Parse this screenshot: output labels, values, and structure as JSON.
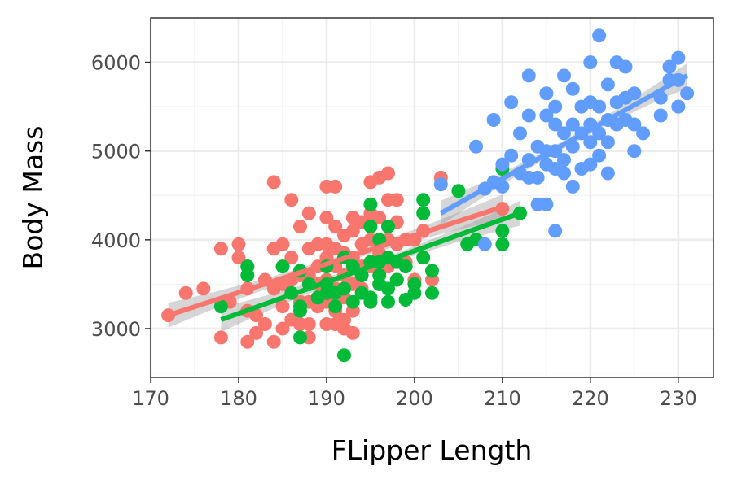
{
  "chart_data": {
    "type": "scatter",
    "xlabel": "FLipper Length",
    "ylabel": "Body Mass",
    "xlim": [
      170,
      234
    ],
    "ylim": [
      2450,
      6500
    ],
    "x_ticks": [
      170,
      180,
      190,
      200,
      210,
      220,
      230
    ],
    "y_ticks": [
      3000,
      4000,
      5000,
      6000
    ],
    "grid": true,
    "legend": "none",
    "series": [
      {
        "color": "#F8766D",
        "points": [
          [
            172,
            3150
          ],
          [
            174,
            3400
          ],
          [
            176,
            3450
          ],
          [
            178,
            2900
          ],
          [
            178,
            3900
          ],
          [
            179,
            3300
          ],
          [
            180,
            3950
          ],
          [
            180,
            3800
          ],
          [
            181,
            3700
          ],
          [
            181,
            3450
          ],
          [
            181,
            3200
          ],
          [
            181,
            2850
          ],
          [
            182,
            3150
          ],
          [
            182,
            2950
          ],
          [
            183,
            3550
          ],
          [
            183,
            3050
          ],
          [
            184,
            4650
          ],
          [
            184,
            3900
          ],
          [
            184,
            3450
          ],
          [
            184,
            2850
          ],
          [
            185,
            3950
          ],
          [
            185,
            3500
          ],
          [
            185,
            3250
          ],
          [
            185,
            3000
          ],
          [
            186,
            4450
          ],
          [
            186,
            3800
          ],
          [
            186,
            3550
          ],
          [
            186,
            3100
          ],
          [
            187,
            4150
          ],
          [
            187,
            3600
          ],
          [
            187,
            3300
          ],
          [
            187,
            3050
          ],
          [
            188,
            4300
          ],
          [
            188,
            3900
          ],
          [
            188,
            3600
          ],
          [
            188,
            3300
          ],
          [
            188,
            3050
          ],
          [
            188,
            2900
          ],
          [
            189,
            3950
          ],
          [
            189,
            3700
          ],
          [
            189,
            3500
          ],
          [
            189,
            3250
          ],
          [
            190,
            4600
          ],
          [
            190,
            4250
          ],
          [
            190,
            3950
          ],
          [
            190,
            3800
          ],
          [
            190,
            3550
          ],
          [
            190,
            3300
          ],
          [
            190,
            3050
          ],
          [
            191,
            4600
          ],
          [
            191,
            4150
          ],
          [
            191,
            3900
          ],
          [
            191,
            3700
          ],
          [
            191,
            3450
          ],
          [
            191,
            3200
          ],
          [
            191,
            3050
          ],
          [
            192,
            4050
          ],
          [
            192,
            3850
          ],
          [
            192,
            3600
          ],
          [
            192,
            3350
          ],
          [
            192,
            3100
          ],
          [
            192,
            3000
          ],
          [
            193,
            4250
          ],
          [
            193,
            4100
          ],
          [
            193,
            3800
          ],
          [
            193,
            3500
          ],
          [
            193,
            3200
          ],
          [
            193,
            2950
          ],
          [
            194,
            4200
          ],
          [
            194,
            3950
          ],
          [
            194,
            3700
          ],
          [
            194,
            3450
          ],
          [
            195,
            4650
          ],
          [
            195,
            4300
          ],
          [
            195,
            4000
          ],
          [
            195,
            3700
          ],
          [
            195,
            3300
          ],
          [
            196,
            4700
          ],
          [
            196,
            4250
          ],
          [
            196,
            3850
          ],
          [
            196,
            3500
          ],
          [
            197,
            4750
          ],
          [
            197,
            4450
          ],
          [
            197,
            4000
          ],
          [
            197,
            3700
          ],
          [
            198,
            4450
          ],
          [
            198,
            4200
          ],
          [
            198,
            3950
          ],
          [
            198,
            3550
          ],
          [
            199,
            4000
          ],
          [
            199,
            3750
          ],
          [
            200,
            4000
          ],
          [
            200,
            3550
          ],
          [
            201,
            4100
          ],
          [
            202,
            3550
          ],
          [
            203,
            4700
          ],
          [
            210,
            4350
          ]
        ],
        "trend": {
          "x": [
            172,
            210
          ],
          "y": [
            3150,
            4370
          ]
        }
      },
      {
        "color": "#00BA38",
        "points": [
          [
            178,
            3250
          ],
          [
            181,
            3700
          ],
          [
            181,
            3600
          ],
          [
            185,
            3700
          ],
          [
            186,
            3400
          ],
          [
            187,
            3650
          ],
          [
            187,
            3250
          ],
          [
            187,
            3200
          ],
          [
            187,
            2900
          ],
          [
            188,
            3500
          ],
          [
            189,
            3350
          ],
          [
            190,
            3700
          ],
          [
            190,
            3500
          ],
          [
            190,
            3400
          ],
          [
            191,
            3400
          ],
          [
            191,
            3250
          ],
          [
            192,
            3800
          ],
          [
            192,
            3450
          ],
          [
            192,
            2700
          ],
          [
            193,
            3700
          ],
          [
            193,
            3300
          ],
          [
            194,
            3600
          ],
          [
            194,
            3400
          ],
          [
            195,
            4400
          ],
          [
            195,
            4150
          ],
          [
            195,
            3750
          ],
          [
            195,
            3350
          ],
          [
            195,
            3300
          ],
          [
            196,
            4000
          ],
          [
            196,
            3750
          ],
          [
            196,
            3600
          ],
          [
            196,
            3500
          ],
          [
            197,
            4150
          ],
          [
            197,
            3800
          ],
          [
            197,
            3450
          ],
          [
            197,
            3300
          ],
          [
            198,
            3750
          ],
          [
            198,
            3550
          ],
          [
            199,
            3700
          ],
          [
            199,
            3325
          ],
          [
            200,
            3500
          ],
          [
            200,
            3400
          ],
          [
            201,
            4450
          ],
          [
            201,
            4300
          ],
          [
            201,
            3800
          ],
          [
            202,
            3650
          ],
          [
            202,
            3400
          ],
          [
            205,
            4550
          ],
          [
            206,
            3950
          ],
          [
            207,
            4000
          ],
          [
            210,
            4800
          ],
          [
            210,
            4100
          ],
          [
            210,
            3950
          ],
          [
            212,
            4300
          ]
        ],
        "trend": {
          "x": [
            178,
            212
          ],
          "y": [
            3100,
            4300
          ]
        }
      },
      {
        "color": "#619CFF",
        "points": [
          [
            203,
            4625
          ],
          [
            207,
            5050
          ],
          [
            208,
            4575
          ],
          [
            208,
            3950
          ],
          [
            209,
            5350
          ],
          [
            209,
            4650
          ],
          [
            210,
            4850
          ],
          [
            210,
            4600
          ],
          [
            211,
            5550
          ],
          [
            211,
            4950
          ],
          [
            212,
            5200
          ],
          [
            212,
            4750
          ],
          [
            213,
            5850
          ],
          [
            213,
            5400
          ],
          [
            213,
            4900
          ],
          [
            213,
            4700
          ],
          [
            214,
            5050
          ],
          [
            214,
            4700
          ],
          [
            214,
            4400
          ],
          [
            215,
            5650
          ],
          [
            215,
            5400
          ],
          [
            215,
            5000
          ],
          [
            215,
            4850
          ],
          [
            215,
            4400
          ],
          [
            216,
            5500
          ],
          [
            216,
            5300
          ],
          [
            216,
            5000
          ],
          [
            216,
            4800
          ],
          [
            216,
            4100
          ],
          [
            217,
            5850
          ],
          [
            217,
            5200
          ],
          [
            217,
            4900
          ],
          [
            217,
            4750
          ],
          [
            218,
            5700
          ],
          [
            218,
            5300
          ],
          [
            218,
            5050
          ],
          [
            218,
            4600
          ],
          [
            219,
            5500
          ],
          [
            219,
            5200
          ],
          [
            219,
            4800
          ],
          [
            220,
            6000
          ],
          [
            220,
            5550
          ],
          [
            220,
            5300
          ],
          [
            220,
            5100
          ],
          [
            220,
            4850
          ],
          [
            221,
            6300
          ],
          [
            221,
            5500
          ],
          [
            221,
            5200
          ],
          [
            221,
            4950
          ],
          [
            222,
            5750
          ],
          [
            222,
            5350
          ],
          [
            222,
            5100
          ],
          [
            222,
            4750
          ],
          [
            223,
            6000
          ],
          [
            223,
            5550
          ],
          [
            223,
            5300
          ],
          [
            224,
            5950
          ],
          [
            224,
            5600
          ],
          [
            224,
            5350
          ],
          [
            225,
            5650
          ],
          [
            225,
            5300
          ],
          [
            225,
            5000
          ],
          [
            226,
            5200
          ],
          [
            228,
            5600
          ],
          [
            228,
            5400
          ],
          [
            229,
            5950
          ],
          [
            229,
            5800
          ],
          [
            230,
            6050
          ],
          [
            230,
            5800
          ],
          [
            230,
            5500
          ],
          [
            231,
            5650
          ]
        ],
        "trend": {
          "x": [
            203,
            231
          ],
          "y": [
            4300,
            5850
          ]
        }
      }
    ]
  }
}
